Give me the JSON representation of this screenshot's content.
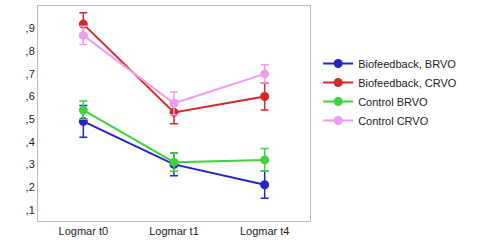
{
  "chart_data": {
    "type": "line",
    "categories": [
      "Logmar t0",
      "Logmar t1",
      "Logmar t4"
    ],
    "series": [
      {
        "name": "Biofeedback, BRVO",
        "color": "#2424c8",
        "values": [
          0.49,
          0.3,
          0.21
        ],
        "errors": [
          0.07,
          0.05,
          0.06
        ]
      },
      {
        "name": "Biofeedback, CRVO",
        "color": "#d42a2a",
        "values": [
          0.92,
          0.53,
          0.6
        ],
        "errors": [
          0.05,
          0.05,
          0.06
        ]
      },
      {
        "name": "Control BRVO",
        "color": "#3ed43e",
        "values": [
          0.54,
          0.31,
          0.32
        ],
        "errors": [
          0.04,
          0.04,
          0.05
        ]
      },
      {
        "name": "Control CRVO",
        "color": "#ee9cee",
        "values": [
          0.87,
          0.57,
          0.7
        ],
        "errors": [
          0.04,
          0.05,
          0.04
        ]
      }
    ],
    "ylim": [
      0.05,
      1.0
    ],
    "yticks": [
      {
        "value": 0.1,
        "label": ",1"
      },
      {
        "value": 0.2,
        "label": ",2"
      },
      {
        "value": 0.3,
        "label": ",3"
      },
      {
        "value": 0.4,
        "label": ",4"
      },
      {
        "value": 0.5,
        "label": ",5"
      },
      {
        "value": 0.6,
        "label": ",6"
      },
      {
        "value": 0.7,
        "label": ",7"
      },
      {
        "value": 0.8,
        "label": ",8"
      },
      {
        "value": 0.9,
        "label": ",9"
      }
    ],
    "grid": false,
    "legend": "right",
    "marker": "circle"
  }
}
